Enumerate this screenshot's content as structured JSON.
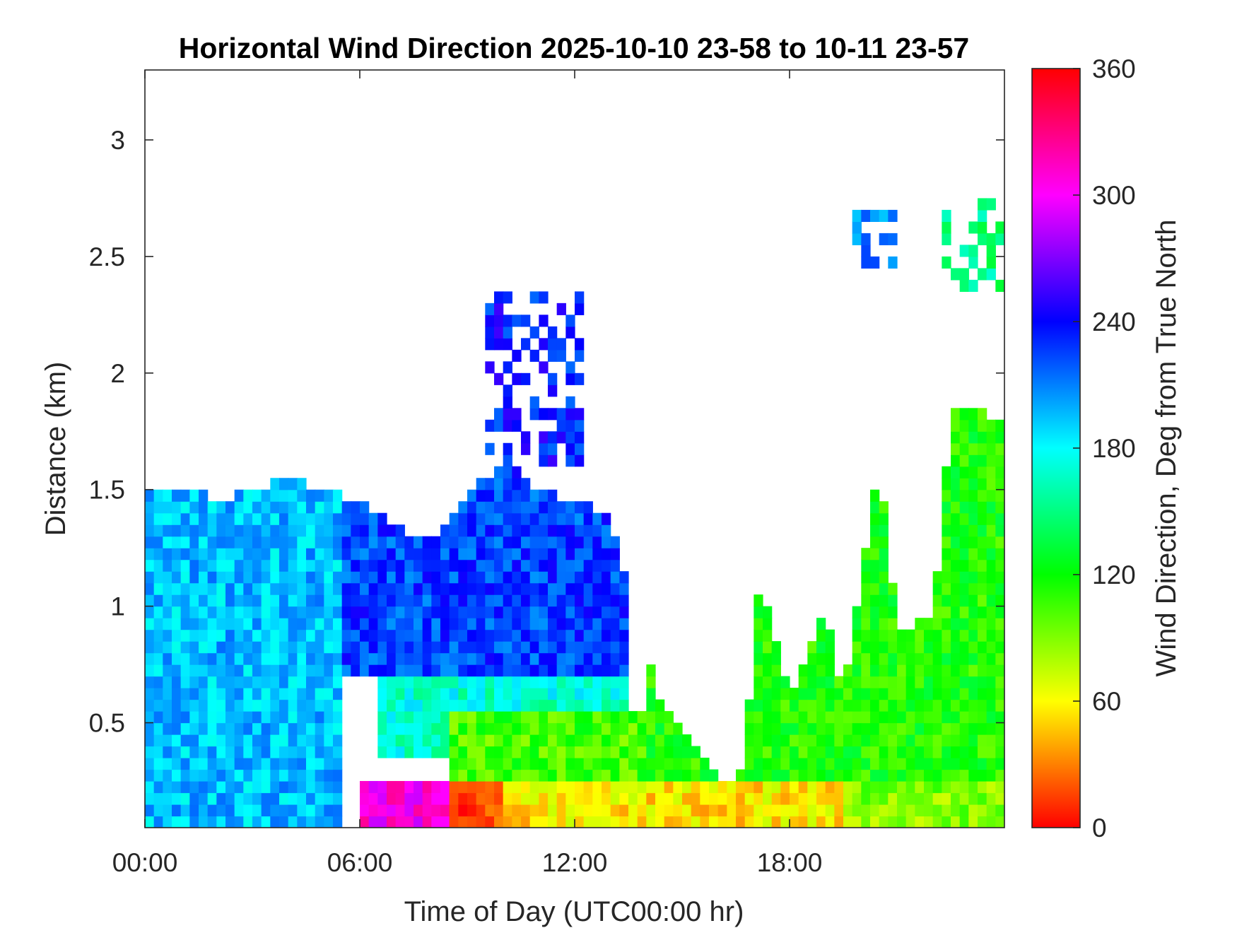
{
  "chart_data": {
    "type": "heatmap",
    "title": "Horizontal Wind Direction 2025-10-10 23-58 to 10-11 23-57",
    "xlabel": "Time of Day (UTC00:00 hr)",
    "ylabel": "Distance (km)",
    "colorbar_label": "Wind Direction, Deg from True North",
    "x_unit": "hours",
    "xlim": [
      0,
      24
    ],
    "ylim": [
      0.05,
      3.3
    ],
    "clim": [
      0,
      360
    ],
    "x_ticks": [
      {
        "value": 0,
        "label": "00:00"
      },
      {
        "value": 6,
        "label": "06:00"
      },
      {
        "value": 12,
        "label": "12:00"
      },
      {
        "value": 18,
        "label": "18:00"
      }
    ],
    "y_ticks": [
      {
        "value": 0.5,
        "label": "0.5"
      },
      {
        "value": 1,
        "label": "1"
      },
      {
        "value": 1.5,
        "label": "1.5"
      },
      {
        "value": 2,
        "label": "2"
      },
      {
        "value": 2.5,
        "label": "2.5"
      },
      {
        "value": 3,
        "label": "3"
      }
    ],
    "colorbar_ticks": [
      {
        "value": 0,
        "label": "0"
      },
      {
        "value": 60,
        "label": "60"
      },
      {
        "value": 120,
        "label": "120"
      },
      {
        "value": 180,
        "label": "180"
      },
      {
        "value": 240,
        "label": "240"
      },
      {
        "value": 300,
        "label": "300"
      },
      {
        "value": 360,
        "label": "360"
      }
    ],
    "colormap": [
      "#ff0000",
      "#ff8000",
      "#ffff00",
      "#80ff00",
      "#00ff00",
      "#00ff80",
      "#00ffff",
      "#0080ff",
      "#0000ff",
      "#8000ff",
      "#ff00ff",
      "#ff0080",
      "#ff0000"
    ],
    "time_step_hours": 0.25,
    "height_step_km": 0.05,
    "data_top_km": [
      [
        0,
        1.48
      ],
      [
        1,
        1.52
      ],
      [
        2,
        1.46
      ],
      [
        3,
        1.5
      ],
      [
        4,
        1.55
      ],
      [
        5,
        1.5
      ],
      [
        6,
        1.45
      ],
      [
        7,
        1.35
      ],
      [
        8,
        1.28
      ],
      [
        9,
        1.5
      ],
      [
        9.5,
        1.55
      ],
      [
        10,
        1.65
      ],
      [
        11,
        1.5
      ],
      [
        12,
        1.45
      ],
      [
        13,
        1.4
      ],
      [
        13.5,
        1.05
      ],
      [
        14.5,
        0.55
      ],
      [
        15,
        0.45
      ],
      [
        16,
        0.25
      ],
      [
        16.8,
        0.3
      ],
      [
        17,
        1.1
      ],
      [
        17.5,
        0.95
      ],
      [
        18,
        0.6
      ],
      [
        19,
        1.0
      ],
      [
        19.5,
        0.6
      ],
      [
        20.5,
        1.65
      ],
      [
        21,
        0.9
      ],
      [
        22,
        0.95
      ],
      [
        22.5,
        1.85
      ],
      [
        23,
        1.85
      ],
      [
        24,
        1.8
      ]
    ],
    "direction_layers_deg": [
      {
        "t_start": 0,
        "t_end": 5.5,
        "z_start": 0.05,
        "z_end": 1.55,
        "deg": 195
      },
      {
        "t_start": 5.5,
        "t_end": 13.5,
        "z_start": 0.7,
        "z_end": 1.6,
        "deg": 225
      },
      {
        "t_start": 6.5,
        "t_end": 13.5,
        "z_start": 0.35,
        "z_end": 0.7,
        "deg": 170
      },
      {
        "t_start": 9.5,
        "t_end": 12.3,
        "z_start": 1.6,
        "z_end": 2.35,
        "deg": 235
      },
      {
        "t_start": 8.5,
        "t_end": 14,
        "z_start": 0.25,
        "z_end": 0.55,
        "deg": 105
      },
      {
        "t_start": 14,
        "t_end": 24,
        "z_start": 0.25,
        "z_end": 1.85,
        "deg": 115
      },
      {
        "t_start": 6,
        "t_end": 8.5,
        "z_start": 0.05,
        "z_end": 0.25,
        "deg": 305
      },
      {
        "t_start": 8.5,
        "t_end": 10,
        "z_start": 0.05,
        "z_end": 0.25,
        "deg": 15
      },
      {
        "t_start": 10,
        "t_end": 19.5,
        "z_start": 0.05,
        "z_end": 0.25,
        "deg": 55
      },
      {
        "t_start": 19.5,
        "t_end": 24,
        "z_start": 0.05,
        "z_end": 0.25,
        "deg": 90
      },
      {
        "t_start": 19.8,
        "t_end": 21,
        "z_start": 2.45,
        "z_end": 2.7,
        "deg": 210
      },
      {
        "t_start": 22.3,
        "t_end": 24,
        "z_start": 2.35,
        "z_end": 2.75,
        "deg": 150
      }
    ],
    "grid": false
  }
}
